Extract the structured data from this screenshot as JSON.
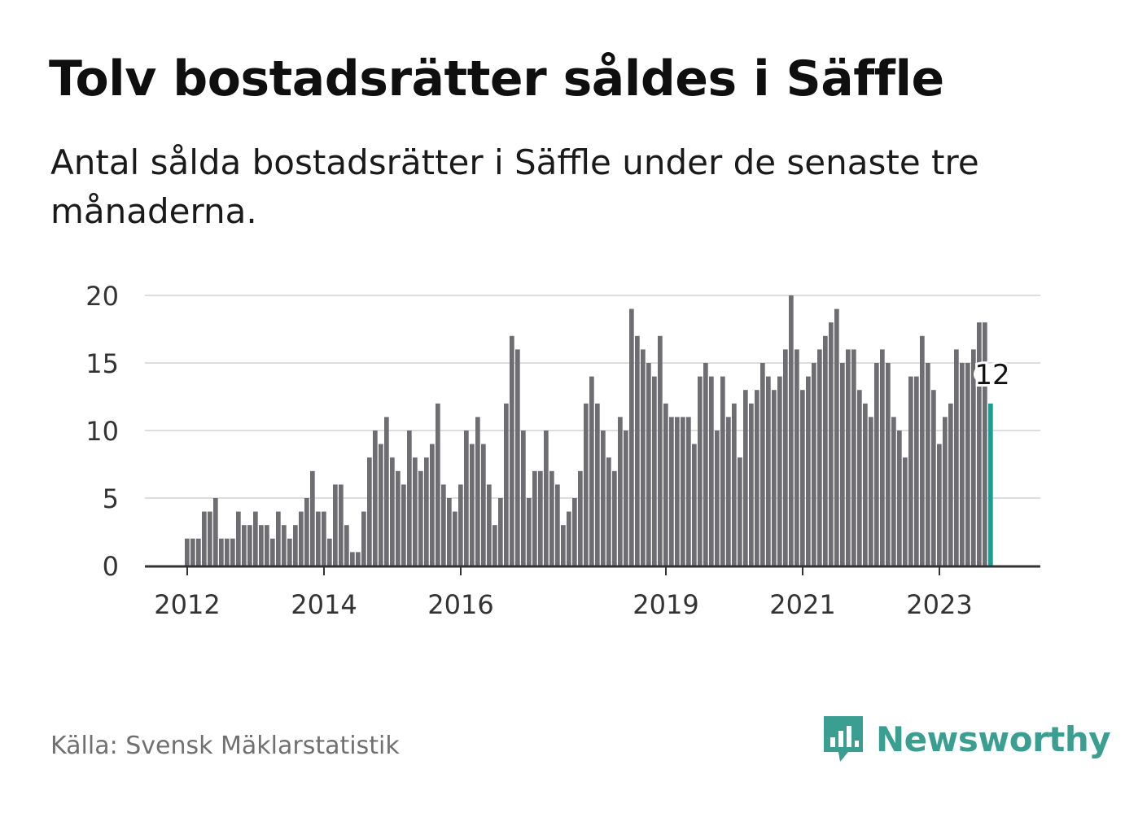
{
  "title": "Tolv bostadsrätter såldes i Säffle",
  "subtitle": "Antal sålda bostadsrätter i Säffle under de senaste tre månaderna.",
  "source": "Källa: Svensk Mäklarstatistik",
  "brand": {
    "name": "Newsworthy",
    "color": "#3a9e90",
    "icon": "bar-chart-speech-bubble-icon"
  },
  "colors": {
    "bar": "#6e6d72",
    "highlight": "#1a9e93",
    "grid": "#dddddd",
    "axis": "#333333"
  },
  "chart_data": {
    "type": "bar",
    "title": "Tolv bostadsrätter såldes i Säffle",
    "xlabel": "",
    "ylabel": "",
    "ylim": [
      0,
      20
    ],
    "yticks": [
      0,
      5,
      10,
      15,
      20
    ],
    "xticks": [
      "2012",
      "2014",
      "2016",
      "2019",
      "2021",
      "2023"
    ],
    "grid": true,
    "start": "2012-01",
    "frequency": "month",
    "values": [
      2,
      2,
      2,
      4,
      4,
      5,
      2,
      2,
      2,
      4,
      3,
      3,
      4,
      3,
      3,
      2,
      4,
      3,
      2,
      3,
      4,
      5,
      7,
      4,
      4,
      2,
      6,
      6,
      3,
      1,
      1,
      4,
      8,
      10,
      9,
      11,
      8,
      7,
      6,
      10,
      8,
      7,
      8,
      9,
      12,
      6,
      5,
      4,
      6,
      10,
      9,
      11,
      9,
      6,
      3,
      5,
      12,
      17,
      16,
      10,
      5,
      7,
      7,
      10,
      7,
      6,
      3,
      4,
      5,
      7,
      12,
      14,
      12,
      10,
      8,
      7,
      11,
      10,
      19,
      17,
      16,
      15,
      14,
      17,
      12,
      11,
      11,
      11,
      11,
      9,
      14,
      15,
      14,
      10,
      14,
      11,
      12,
      8,
      13,
      12,
      13,
      15,
      14,
      13,
      14,
      16,
      20,
      16,
      13,
      14,
      15,
      16,
      17,
      18,
      19,
      15,
      16,
      16,
      13,
      12,
      11,
      15,
      16,
      15,
      11,
      10,
      8,
      14,
      14,
      17,
      15,
      13,
      9,
      11,
      12,
      16,
      15,
      15,
      16,
      18,
      18,
      12
    ],
    "highlight_last": true,
    "last_label": "12"
  }
}
